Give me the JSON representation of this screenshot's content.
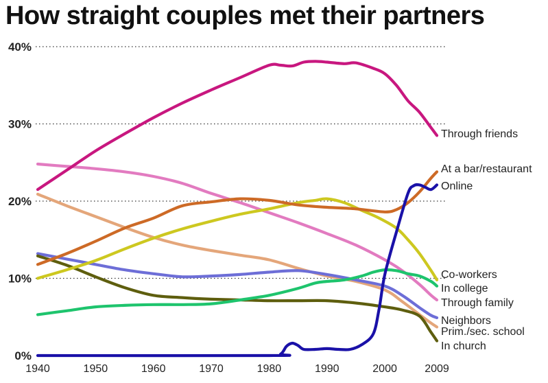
{
  "chart_data": {
    "type": "line",
    "title": "How straight couples met their partners",
    "x_ticks": [
      1940,
      1950,
      1960,
      1970,
      1980,
      1990,
      2000,
      2009
    ],
    "y_ticks": [
      0,
      10,
      20,
      30,
      40
    ],
    "y_tick_labels": [
      "0%",
      "10%",
      "20%",
      "30%",
      "40%"
    ],
    "xlim": [
      1940,
      2009
    ],
    "ylim": [
      0,
      40
    ],
    "grid": "dotted horizontal",
    "series": [
      {
        "name": "Through friends",
        "color": "#c8177f",
        "points": [
          [
            1940,
            21.5
          ],
          [
            1945,
            24
          ],
          [
            1950,
            26.5
          ],
          [
            1955,
            28.7
          ],
          [
            1960,
            30.8
          ],
          [
            1965,
            32.7
          ],
          [
            1970,
            34.4
          ],
          [
            1975,
            36
          ],
          [
            1980,
            37.6
          ],
          [
            1982,
            37.6
          ],
          [
            1984,
            37.5
          ],
          [
            1986,
            38
          ],
          [
            1988,
            38.1
          ],
          [
            1990,
            38
          ],
          [
            1993,
            37.8
          ],
          [
            1995,
            37.9
          ],
          [
            1998,
            37.2
          ],
          [
            2000,
            36.5
          ],
          [
            2002,
            35
          ],
          [
            2004,
            33
          ],
          [
            2006,
            31.5
          ],
          [
            2008,
            29.5
          ],
          [
            2009,
            28.5
          ]
        ]
      },
      {
        "name": "At a bar/restaurant",
        "color": "#cd6a26",
        "points": [
          [
            1940,
            11.8
          ],
          [
            1945,
            13.2
          ],
          [
            1950,
            14.8
          ],
          [
            1955,
            16.5
          ],
          [
            1960,
            17.8
          ],
          [
            1965,
            19.4
          ],
          [
            1970,
            19.9
          ],
          [
            1975,
            20.3
          ],
          [
            1980,
            20.1
          ],
          [
            1985,
            19.5
          ],
          [
            1990,
            19.2
          ],
          [
            1995,
            19
          ],
          [
            2000,
            18.6
          ],
          [
            2002,
            18.9
          ],
          [
            2004,
            19.8
          ],
          [
            2006,
            21.2
          ],
          [
            2008,
            23
          ],
          [
            2009,
            23.8
          ]
        ]
      },
      {
        "name": "Online",
        "color": "#1a11a8",
        "points": [
          [
            1940,
            0
          ],
          [
            1980,
            0
          ],
          [
            1982,
            0.2
          ],
          [
            1983,
            1.2
          ],
          [
            1984,
            1.6
          ],
          [
            1985,
            1.3
          ],
          [
            1986,
            0.8
          ],
          [
            1988,
            0.8
          ],
          [
            1990,
            0.9
          ],
          [
            1992,
            0.8
          ],
          [
            1994,
            0.8
          ],
          [
            1996,
            1.4
          ],
          [
            1998,
            2.8
          ],
          [
            1999,
            6
          ],
          [
            2000,
            10.5
          ],
          [
            2002,
            16
          ],
          [
            2004,
            21
          ],
          [
            2005,
            22
          ],
          [
            2006,
            22.1
          ],
          [
            2007,
            21.8
          ],
          [
            2008,
            21.5
          ],
          [
            2009,
            22.1
          ]
        ]
      },
      {
        "name": "Co-workers",
        "color": "#cdc820",
        "points": [
          [
            1940,
            10
          ],
          [
            1945,
            11.1
          ],
          [
            1950,
            12.3
          ],
          [
            1955,
            13.8
          ],
          [
            1960,
            15.2
          ],
          [
            1965,
            16.4
          ],
          [
            1970,
            17.4
          ],
          [
            1975,
            18.3
          ],
          [
            1980,
            19
          ],
          [
            1985,
            19.8
          ],
          [
            1988,
            20.1
          ],
          [
            1990,
            20.3
          ],
          [
            1993,
            19.8
          ],
          [
            1996,
            18.8
          ],
          [
            1999,
            17.8
          ],
          [
            2002,
            16.5
          ],
          [
            2004,
            15
          ],
          [
            2006,
            13.2
          ],
          [
            2008,
            11
          ],
          [
            2009,
            9.8
          ]
        ]
      },
      {
        "name": "In college",
        "color": "#1ec46d",
        "points": [
          [
            1940,
            5.3
          ],
          [
            1945,
            5.8
          ],
          [
            1950,
            6.3
          ],
          [
            1955,
            6.5
          ],
          [
            1960,
            6.6
          ],
          [
            1965,
            6.6
          ],
          [
            1970,
            6.7
          ],
          [
            1975,
            7.2
          ],
          [
            1980,
            7.8
          ],
          [
            1985,
            8.7
          ],
          [
            1988,
            9.4
          ],
          [
            1990,
            9.6
          ],
          [
            1993,
            9.8
          ],
          [
            1996,
            10.3
          ],
          [
            1998,
            10.8
          ],
          [
            2000,
            11.1
          ],
          [
            2002,
            11
          ],
          [
            2004,
            10.6
          ],
          [
            2006,
            10.3
          ],
          [
            2008,
            9.6
          ],
          [
            2009,
            9
          ]
        ]
      },
      {
        "name": "Through family",
        "color": "#e27bc0",
        "points": [
          [
            1940,
            24.8
          ],
          [
            1945,
            24.5
          ],
          [
            1950,
            24.2
          ],
          [
            1955,
            23.8
          ],
          [
            1960,
            23.2
          ],
          [
            1965,
            22.3
          ],
          [
            1970,
            21
          ],
          [
            1975,
            19.8
          ],
          [
            1980,
            18.5
          ],
          [
            1985,
            17.2
          ],
          [
            1990,
            15.8
          ],
          [
            1995,
            14.3
          ],
          [
            2000,
            12.4
          ],
          [
            2003,
            11
          ],
          [
            2006,
            9.2
          ],
          [
            2008,
            7.8
          ],
          [
            2009,
            7.2
          ]
        ]
      },
      {
        "name": "Neighbors",
        "color": "#6d6ed7",
        "points": [
          [
            1940,
            13.2
          ],
          [
            1945,
            12.5
          ],
          [
            1950,
            11.8
          ],
          [
            1955,
            11.1
          ],
          [
            1960,
            10.6
          ],
          [
            1965,
            10.2
          ],
          [
            1970,
            10.3
          ],
          [
            1975,
            10.5
          ],
          [
            1980,
            10.8
          ],
          [
            1985,
            11
          ],
          [
            1990,
            10.5
          ],
          [
            1995,
            9.8
          ],
          [
            2000,
            9
          ],
          [
            2003,
            7.8
          ],
          [
            2006,
            6.2
          ],
          [
            2008,
            5.2
          ],
          [
            2009,
            4.9
          ]
        ]
      },
      {
        "name": "Prim./sec. school",
        "color": "#e4a67a",
        "points": [
          [
            1940,
            20.9
          ],
          [
            1945,
            19.4
          ],
          [
            1950,
            18
          ],
          [
            1955,
            16.6
          ],
          [
            1960,
            15.3
          ],
          [
            1965,
            14.3
          ],
          [
            1970,
            13.6
          ],
          [
            1975,
            13
          ],
          [
            1980,
            12.4
          ],
          [
            1985,
            11.3
          ],
          [
            1990,
            10.3
          ],
          [
            1995,
            9.6
          ],
          [
            2000,
            8.5
          ],
          [
            2003,
            7
          ],
          [
            2006,
            5.3
          ],
          [
            2008,
            4.2
          ],
          [
            2009,
            3.7
          ]
        ]
      },
      {
        "name": "In church",
        "color": "#5e5e0e",
        "points": [
          [
            1940,
            12.9
          ],
          [
            1945,
            11.7
          ],
          [
            1950,
            10.2
          ],
          [
            1955,
            8.8
          ],
          [
            1960,
            7.8
          ],
          [
            1965,
            7.5
          ],
          [
            1970,
            7.3
          ],
          [
            1975,
            7.2
          ],
          [
            1980,
            7.1
          ],
          [
            1985,
            7.1
          ],
          [
            1990,
            7.1
          ],
          [
            1995,
            6.8
          ],
          [
            2000,
            6.3
          ],
          [
            2003,
            5.9
          ],
          [
            2006,
            5.1
          ],
          [
            2008,
            3
          ],
          [
            2009,
            1.9
          ]
        ]
      }
    ]
  }
}
